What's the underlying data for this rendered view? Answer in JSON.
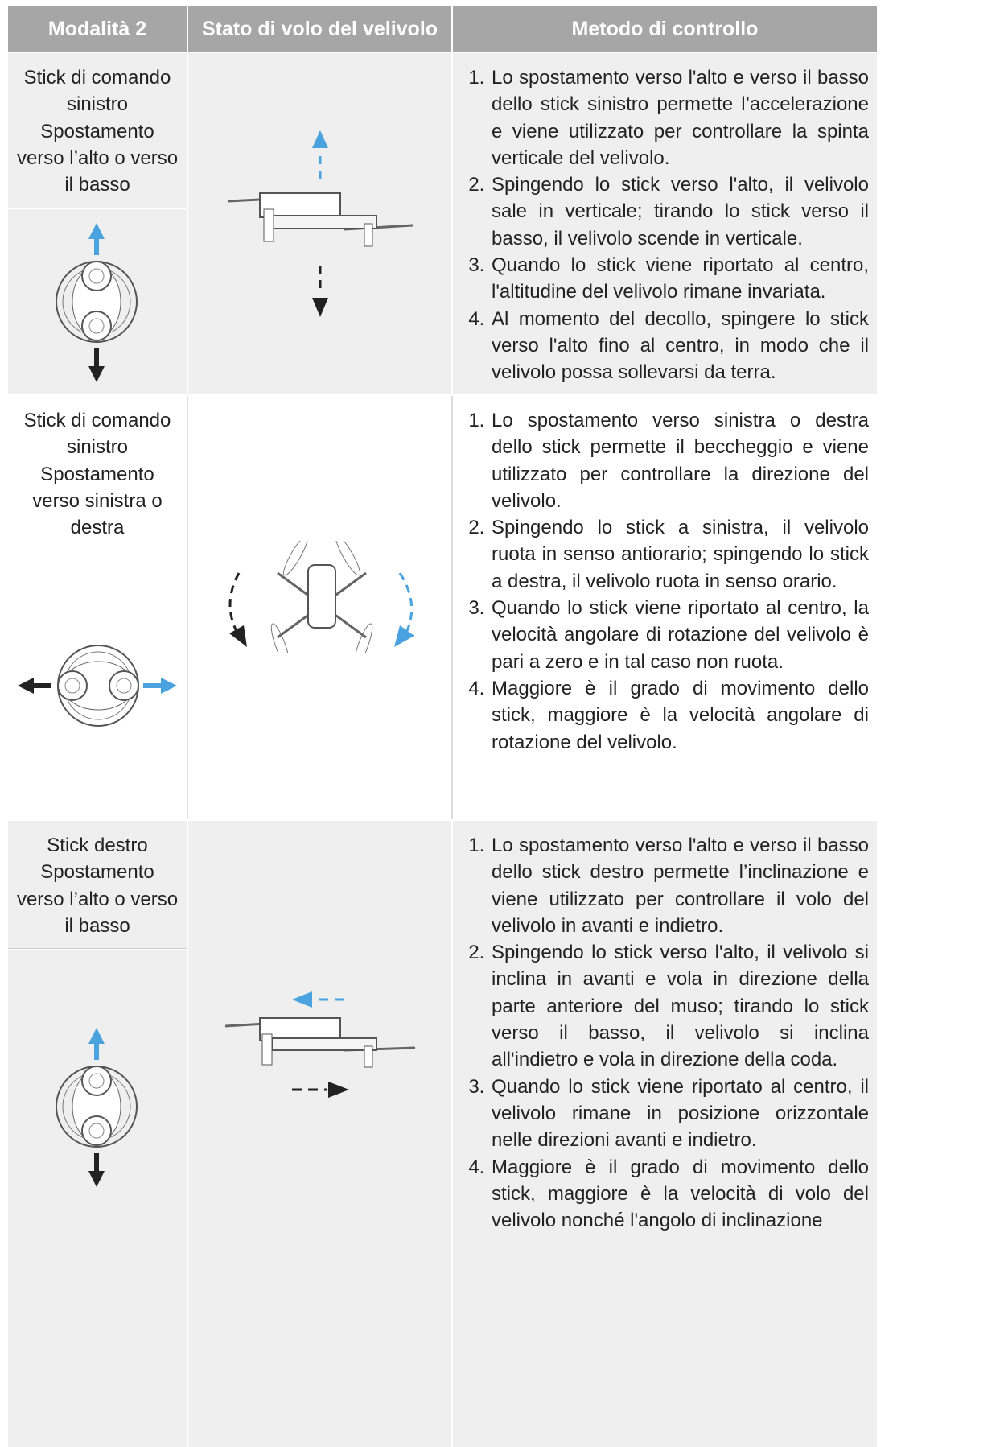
{
  "header": [
    "Modalità 2",
    "Stato di volo del velivolo",
    "Metodo di controllo"
  ],
  "rows": [
    {
      "label": "Stick di comando sinistro Spostamento verso l’alto o verso il basso",
      "items": [
        "Lo spostamento verso l'alto e verso il basso dello stick sinistro permette l’accelerazione e viene utilizzato per controllare la spinta verticale del velivolo.",
        "Spingendo lo stick verso l'alto, il velivolo sale in verticale; tirando lo stick verso il basso, il velivolo scende in verticale.",
        "Quando lo stick viene riportato al centro, l'altitudine del velivolo rimane invariata.",
        "Al momento del decollo, spingere lo stick verso l'alto fino al centro, in modo che il velivolo possa sollevarsi da terra."
      ]
    },
    {
      "label": "Stick di comando sinistro Spostamento verso sinistra o destra",
      "items": [
        "Lo spostamento verso sinistra o destra dello stick permette il beccheggio e viene utilizzato per controllare la direzione del velivolo.",
        "Spingendo lo stick a sinistra, il velivolo ruota in senso antiorario; spingendo lo stick a destra, il velivolo ruota in senso orario.",
        "Quando lo stick viene riportato al centro, la velocità angolare di rotazione del velivolo è pari a zero e in tal caso non ruota.",
        "Maggiore è il grado di movimento dello stick, maggiore è la velocità angolare di rotazione del velivolo."
      ]
    },
    {
      "label": "Stick destro Spostamento verso l’alto o verso il basso",
      "items": [
        "Lo spostamento verso l'alto e verso il basso dello stick destro permette l’inclinazione e viene utilizzato per controllare il volo del velivolo in avanti e indietro.",
        "Spingendo lo stick verso l'alto, il velivolo si inclina in avanti e vola in direzione della parte anteriore del muso; tirando lo stick verso il basso, il velivolo si inclina all'indietro e vola in direzione della coda.",
        "Quando lo stick viene riportato al centro, il velivolo rimane in posizione orizzontale nelle direzioni avanti e indietro.",
        "Maggiore è il grado di movimento dello stick, maggiore è la velocità di volo del velivolo nonché l'angolo di inclinazione"
      ]
    }
  ]
}
